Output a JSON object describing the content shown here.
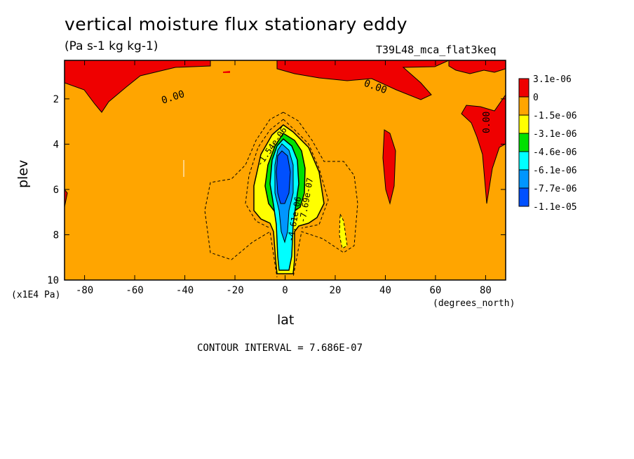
{
  "chart_data": {
    "type": "contour",
    "title": "vertical moisture flux stationary eddy",
    "units": "(Pa s-1 kg kg-1)",
    "run_label": "T39L48_mca_flat3keq",
    "xlabel": "lat",
    "ylabel": "plev",
    "x_unit": "(degrees_north)",
    "y_unit": "(x1E4 Pa)",
    "xlim": [
      -88,
      88
    ],
    "ylim": [
      10,
      0.3
    ],
    "x_ticks": [
      "-80",
      "-60",
      "-40",
      "-20",
      "0",
      "20",
      "40",
      "60",
      "80"
    ],
    "y_ticks": [
      "2",
      "4",
      "6",
      "8",
      "10"
    ],
    "contour_interval": "CONTOUR INTERVAL = 7.686E-07",
    "contour_labels": [
      "0.00",
      "0.00",
      "0.00",
      "-1.54e-06",
      "-7.69e-07",
      "-4.61e-06"
    ],
    "legend": {
      "levels": [
        "3.1e-06",
        "0",
        "-1.5e-06",
        "-3.1e-06",
        "-4.6e-06",
        "-6.1e-06",
        "-7.7e-06",
        "-1.1e-05"
      ],
      "colors": [
        "#ef0000",
        "#ffa500",
        "#ffff00",
        "#00e000",
        "#00ffff",
        "#0096ff",
        "#0050ff"
      ]
    }
  }
}
